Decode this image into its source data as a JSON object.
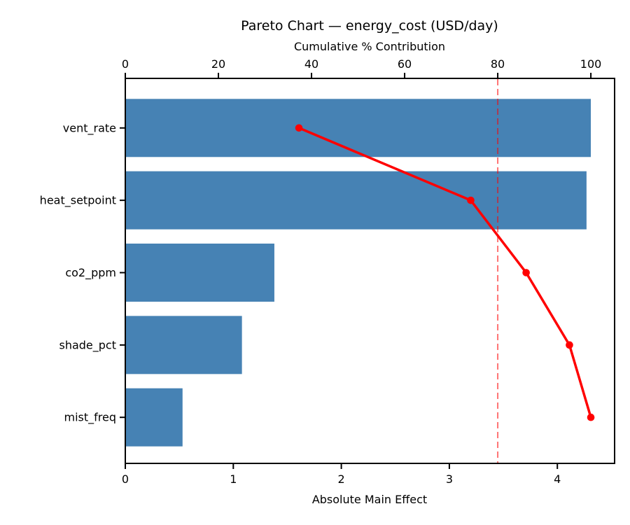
{
  "figure": {
    "title": "Pareto Chart — energy_cost (USD/day)",
    "top_axis_label": "Cumulative % Contribution",
    "bottom_axis_label": "Absolute Main Effect"
  },
  "chart_data": {
    "type": "bar",
    "subtype": "pareto",
    "orientation": "horizontal",
    "title": "Pareto Chart — energy_cost (USD/day)",
    "categories": [
      "vent_rate",
      "heat_setpoint",
      "co2_ppm",
      "shade_pct",
      "mist_freq"
    ],
    "series": [
      {
        "name": "Absolute Main Effect",
        "type": "bar",
        "values": [
          4.31,
          4.27,
          1.38,
          1.08,
          0.53
        ]
      },
      {
        "name": "Cumulative % Contribution",
        "type": "line",
        "values": [
          37.3,
          74.2,
          86.1,
          95.4,
          100.0
        ]
      }
    ],
    "threshold_pct": 80,
    "axes": {
      "bottom": {
        "label": "Absolute Main Effect",
        "ticks": [
          0,
          1,
          2,
          3,
          4
        ],
        "range": [
          0,
          4.53
        ]
      },
      "top": {
        "label": "Cumulative % Contribution",
        "ticks": [
          0,
          20,
          40,
          60,
          80,
          100
        ],
        "range": [
          0,
          105.1
        ]
      }
    },
    "legend": false,
    "grid": false,
    "colors": {
      "bar": "#4682b4",
      "line": "#ff0000",
      "marker": "#ff0000",
      "threshold": "#ff0000",
      "threshold_opacity": 0.55,
      "axis": "#000000"
    }
  }
}
